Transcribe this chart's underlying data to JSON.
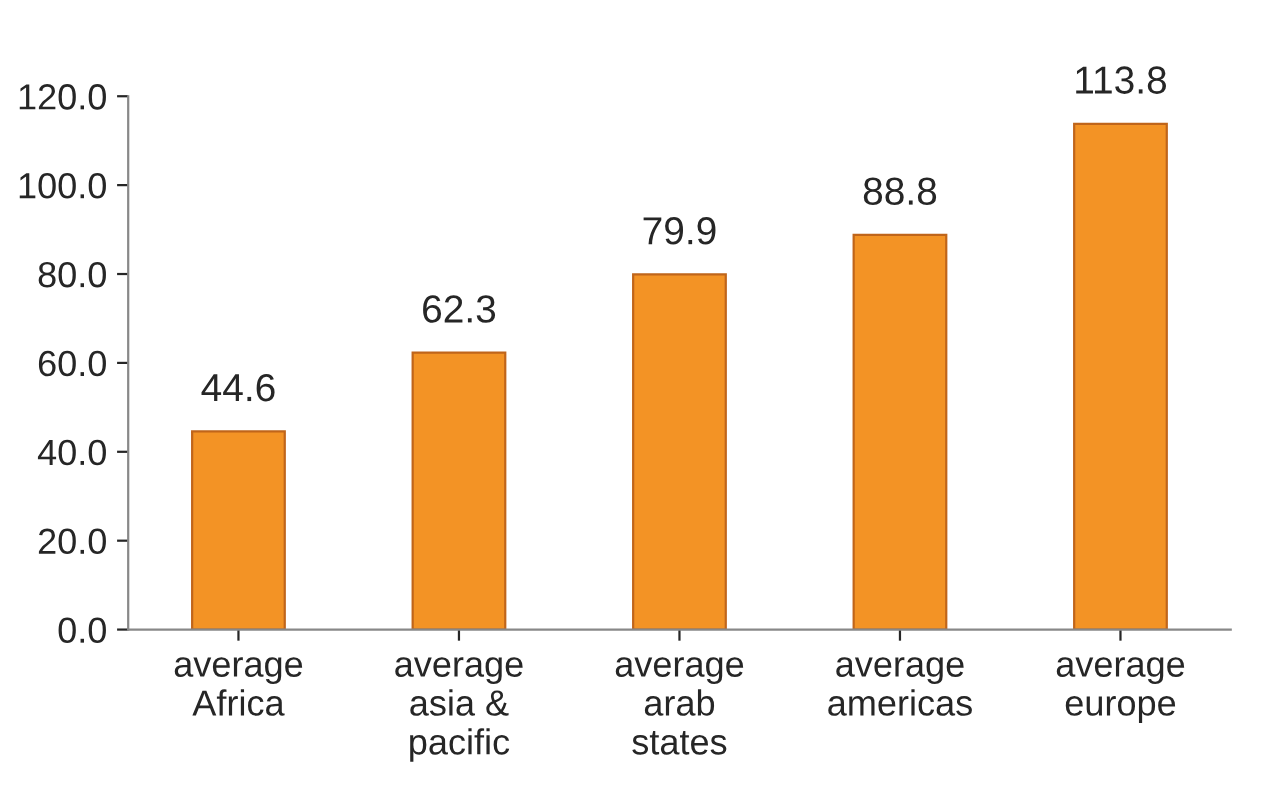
{
  "chart_data": {
    "type": "bar",
    "categories": [
      "average\nAfrica",
      "average\nasia &\npacific",
      "average\narab\nstates",
      "average\namericas",
      "average\neurope"
    ],
    "values": [
      44.6,
      62.3,
      79.9,
      88.8,
      113.8
    ],
    "value_labels": [
      "44.6",
      "62.3",
      "79.9",
      "88.8",
      "113.8"
    ],
    "color": "#f39325",
    "ylim": [
      0,
      120
    ],
    "yticks": [
      {
        "value": 0,
        "label": "0.0"
      },
      {
        "value": 20,
        "label": "20.0"
      },
      {
        "value": 40,
        "label": "40.0"
      },
      {
        "value": 60,
        "label": "60.0"
      },
      {
        "value": 80,
        "label": "80.0"
      },
      {
        "value": 100,
        "label": "100.0"
      },
      {
        "value": 120,
        "label": "120.0"
      }
    ],
    "grid": false,
    "legend": false
  }
}
